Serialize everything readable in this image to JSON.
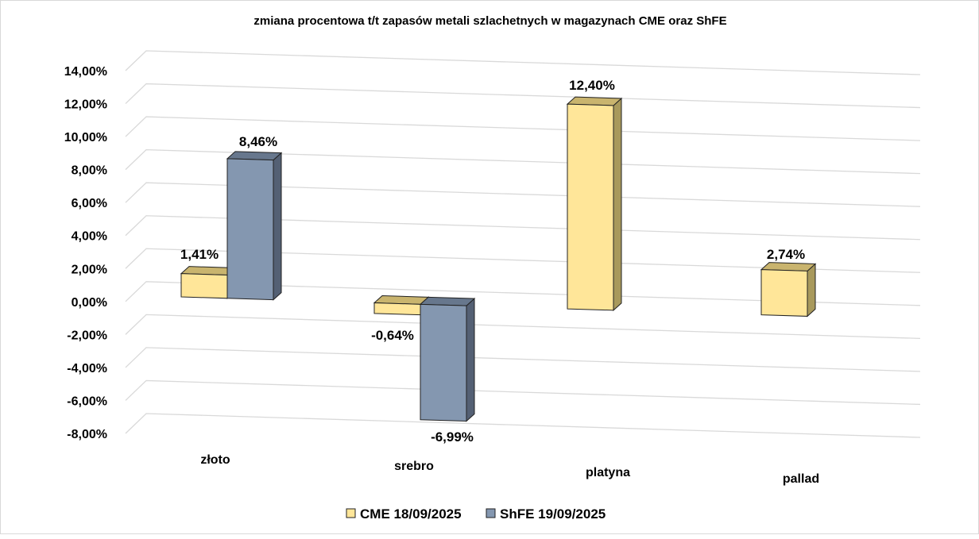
{
  "chart_data": {
    "type": "bar",
    "title": "zmiana procentowa t/t zapasów metali szlachetnych w magazynach CME oraz ShFE",
    "categories": [
      "złoto",
      "srebro",
      "platyna",
      "pallad"
    ],
    "series": [
      {
        "name": "CME 18/09/2025",
        "values": [
          1.41,
          -0.64,
          12.4,
          2.74
        ],
        "labels": [
          "1,41%",
          "-0,64%",
          "12,40%",
          "2,74%"
        ],
        "color": "#FFE699"
      },
      {
        "name": "ShFE 19/09/2025",
        "values": [
          8.46,
          -6.99,
          null,
          null
        ],
        "labels": [
          "8,46%",
          "-6,99%",
          "",
          ""
        ],
        "color": "#8497B0"
      }
    ],
    "yticks": [
      "14,00%",
      "12,00%",
      "10,00%",
      "8,00%",
      "6,00%",
      "4,00%",
      "2,00%",
      "0,00%",
      "-2,00%",
      "-4,00%",
      "-6,00%",
      "-8,00%"
    ],
    "ylim": [
      -8,
      14
    ],
    "grid": true,
    "legend": "bottom",
    "xlabel": "",
    "ylabel": ""
  }
}
